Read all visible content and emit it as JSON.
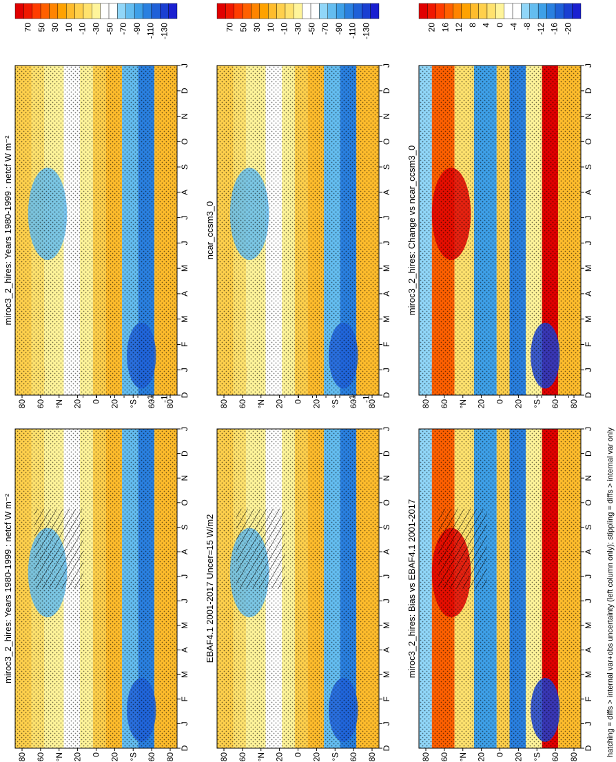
{
  "footnote": "hatching = diffs > internal var+obs uncertainty (left column only); stippling = diffs > internal var only",
  "colorbars": {
    "abs": {
      "colors": [
        "#e00000",
        "#f01800",
        "#ff3c00",
        "#ff6000",
        "#ff8400",
        "#ffa200",
        "#ffbc2c",
        "#ffd04c",
        "#ffe26e",
        "#fff49a",
        "#ffffff",
        "#ffffff",
        "#90d6f8",
        "#64bdf0",
        "#3ea0e8",
        "#2a80e0",
        "#1f60d8",
        "#1a3fd2",
        "#1a20d0"
      ],
      "labels": [
        "70",
        "50",
        "30",
        "10",
        "-10",
        "-30",
        "-50",
        "-70",
        "-90",
        "-110",
        "-130"
      ]
    },
    "diff": {
      "colors": [
        "#e00000",
        "#f01800",
        "#ff3c00",
        "#ff6000",
        "#ff8400",
        "#ffa200",
        "#ffbc2c",
        "#ffd04c",
        "#ffe26e",
        "#fff49a",
        "#ffffff",
        "#ffffff",
        "#90d6f8",
        "#64bdf0",
        "#3ea0e8",
        "#2a80e0",
        "#1f60d8",
        "#1a3fd2",
        "#1a20d0"
      ],
      "labels": [
        "20",
        "16",
        "12",
        "8",
        "4",
        "0",
        "-4",
        "-8",
        "-12",
        "-16",
        "-20"
      ]
    }
  },
  "chart_data": [
    {
      "type": "heatmap",
      "title": "miroc3_2_hires: Years 1980-1999 : netcf W m⁻²",
      "x_ticks": [
        "D",
        "J",
        "F",
        "M",
        "A",
        "M",
        "J",
        "J",
        "A",
        "S",
        "O",
        "N",
        "D",
        "J"
      ],
      "y_ticks": [
        "80",
        "60",
        "°N",
        "20",
        "0",
        "20",
        "°S",
        "60",
        "80"
      ],
      "colorbar": "abs",
      "hatching": true
    },
    {
      "type": "heatmap",
      "title": "miroc3_2_hires: Years 1980-1999 : netcf W m⁻²",
      "x_ticks": [
        "D",
        "J",
        "F",
        "M",
        "A",
        "M",
        "J",
        "J",
        "A",
        "S",
        "O",
        "N",
        "D",
        "J"
      ],
      "y_ticks": [
        "80",
        "60",
        "°N",
        "20",
        "0",
        "20",
        "°S",
        "60",
        "80"
      ],
      "colorbar": "abs",
      "hatching": false
    },
    {
      "type": "heatmap",
      "title": "EBAF4.1 2001-2017 Uncer=15 W/m2",
      "x_ticks": [
        "D",
        "J",
        "F",
        "M",
        "A",
        "M",
        "J",
        "J",
        "A",
        "S",
        "O",
        "N",
        "D",
        "J"
      ],
      "y_ticks": [
        "80",
        "60",
        "°N",
        "20",
        "0",
        "20",
        "°S",
        "60",
        "80"
      ],
      "colorbar": "abs",
      "hatching": true
    },
    {
      "type": "heatmap",
      "title": "ncar_ccsm3_0",
      "x_ticks": [
        "D",
        "J",
        "F",
        "M",
        "A",
        "M",
        "J",
        "J",
        "A",
        "S",
        "O",
        "N",
        "D",
        "J"
      ],
      "y_ticks": [
        "80",
        "60",
        "°N",
        "20",
        "0",
        "20",
        "°S",
        "60",
        "80"
      ],
      "colorbar": "abs",
      "hatching": false
    },
    {
      "type": "heatmap",
      "title": "miroc3_2_hires: Bias vs EBAF4.1 2001-2017",
      "x_ticks": [
        "D",
        "J",
        "F",
        "M",
        "A",
        "M",
        "J",
        "J",
        "A",
        "S",
        "O",
        "N",
        "D",
        "J"
      ],
      "y_ticks": [
        "80",
        "60",
        "°N",
        "20",
        "0",
        "20",
        "°S",
        "60",
        "80"
      ],
      "colorbar": "diff",
      "hatching": true
    },
    {
      "type": "heatmap",
      "title": "miroc3_2_hires: Change vs ncar_ccsm3_0",
      "x_ticks": [
        "D",
        "J",
        "F",
        "M",
        "A",
        "M",
        "J",
        "J",
        "A",
        "S",
        "O",
        "N",
        "D",
        "J"
      ],
      "y_ticks": [
        "80",
        "60",
        "°N",
        "20",
        "0",
        "20",
        "°S",
        "60",
        "80"
      ],
      "colorbar": "diff",
      "hatching": false
    }
  ]
}
